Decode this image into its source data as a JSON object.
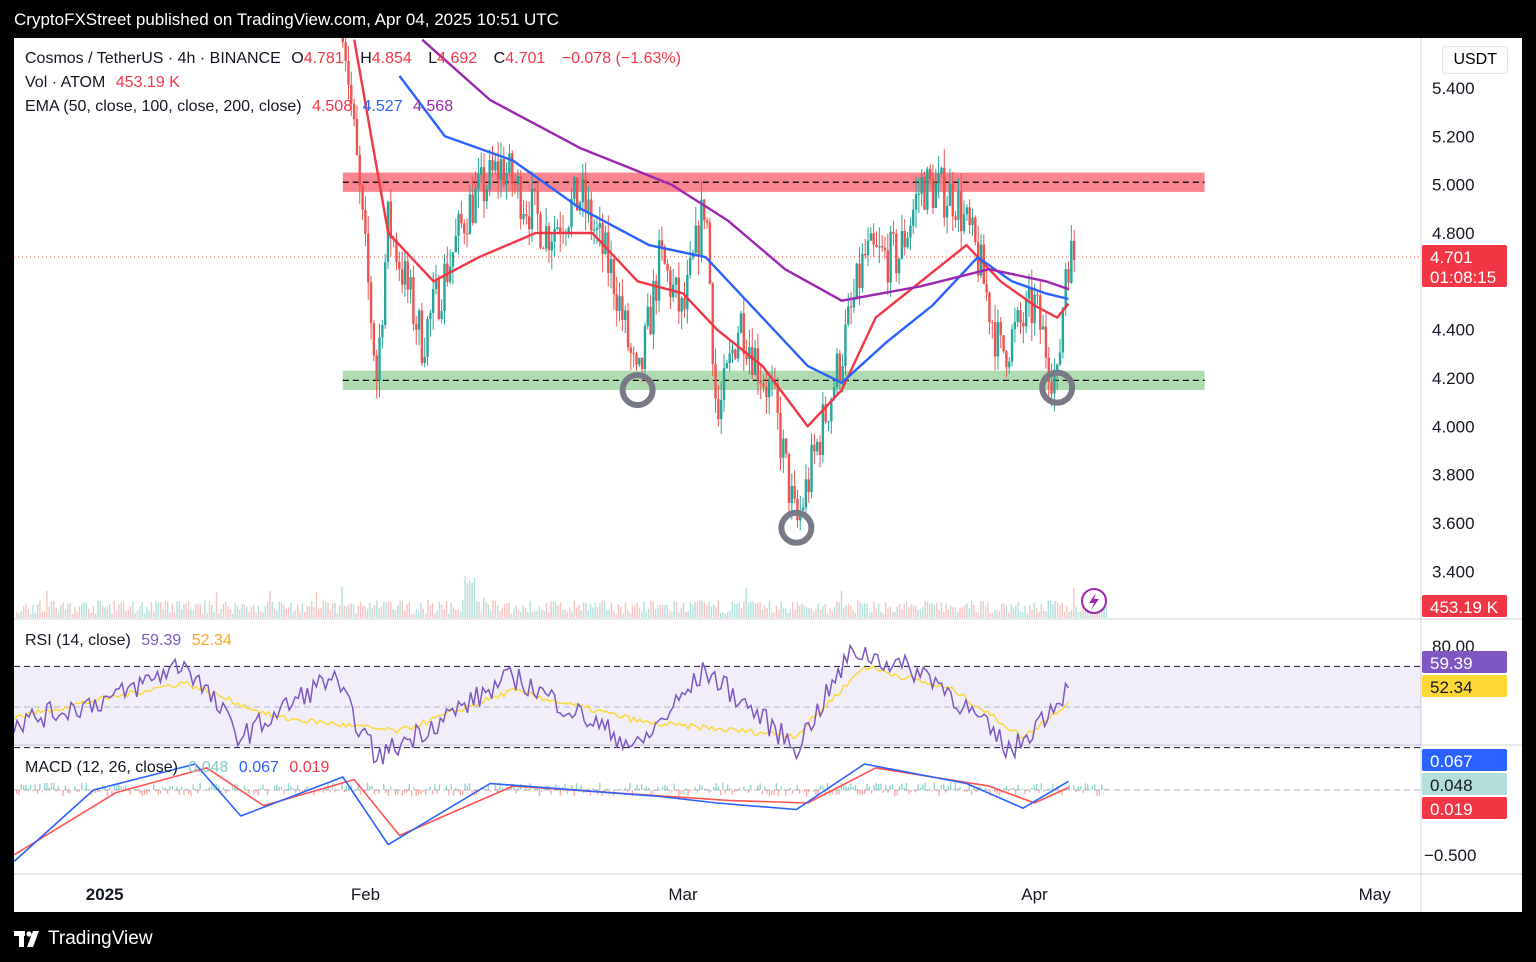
{
  "header": {
    "published": "CryptoFXStreet published on TradingView.com, Apr 04, 2025 10:51 UTC"
  },
  "legend": {
    "symbol": "Cosmos / TetherUS · 4h · BINANCE",
    "o_label": "O",
    "o_val": "4.781",
    "h_label": "H",
    "h_val": "4.854",
    "l_label": "L",
    "l_val": "4.692",
    "c_label": "C",
    "c_val": "4.701",
    "change": "−0.078 (−1.63%)",
    "vol_label": "Vol · ATOM",
    "vol_val": "453.19 K",
    "ema_label": "EMA (50, close, 100, close, 200, close)",
    "ema50": "4.508",
    "ema100": "4.527",
    "ema200": "4.568",
    "rsi_label": "RSI (14, close)",
    "rsi_val": "59.39",
    "rsi_ma": "52.34",
    "macd_label": "MACD (12, 26, close)",
    "macd_hist": "0.048",
    "macd_val": "0.067",
    "macd_signal": "0.019"
  },
  "currency": "USDT",
  "price_axis": [
    "5.400",
    "5.200",
    "5.000",
    "4.800",
    "4.400",
    "4.200",
    "4.000",
    "3.800",
    "3.600",
    "3.400"
  ],
  "price_tag": {
    "price": "4.701",
    "countdown": "01:08:15",
    "volume": "453.19 K"
  },
  "rsi_axis": [
    "80.00"
  ],
  "rsi_tags": [
    "59.39",
    "52.34"
  ],
  "macd_axis": [
    "−0.500"
  ],
  "macd_tags": [
    "0.067",
    "0.048",
    "0.019"
  ],
  "time_axis": [
    "2025",
    "Feb",
    "Mar",
    "Apr",
    "May"
  ],
  "footer": {
    "brand": "TradingView"
  },
  "colors": {
    "up": "#26a69a",
    "down": "#ef5350",
    "ema50": "#f23645",
    "ema100": "#2962ff",
    "ema200": "#9c27b0",
    "resistance": "#f7525f",
    "support": "#4caf50",
    "rsi": "#7e57c2",
    "rsi_ma": "#fdd835",
    "macd": "#2962ff",
    "signal": "#ff5252"
  },
  "chart_data": [
    {
      "type": "candlestick",
      "title": "Cosmos / TetherUS · 4h · BINANCE",
      "x_range": [
        "2025-01-01",
        "2025-05-05"
      ],
      "ylim": [
        3.3,
        5.5
      ],
      "resistance_zone": [
        4.97,
        5.05
      ],
      "resistance_line": 5.01,
      "support_zone": [
        4.15,
        4.23
      ],
      "support_line": 4.19,
      "last_price": 4.701,
      "marked_lows": [
        {
          "date": "2025-02-25",
          "price": 4.15
        },
        {
          "date": "2025-03-11",
          "price": 3.58
        },
        {
          "date": "2025-04-03",
          "price": 4.16
        }
      ],
      "price_path": [
        {
          "date": "2025-01-30",
          "price": 5.7
        },
        {
          "date": "2025-02-02",
          "price": 4.2
        },
        {
          "date": "2025-02-03",
          "price": 4.85
        },
        {
          "date": "2025-02-06",
          "price": 4.35
        },
        {
          "date": "2025-02-10",
          "price": 4.9
        },
        {
          "date": "2025-02-13",
          "price": 5.08
        },
        {
          "date": "2025-02-17",
          "price": 4.8
        },
        {
          "date": "2025-02-20",
          "price": 4.95
        },
        {
          "date": "2025-02-23",
          "price": 4.6
        },
        {
          "date": "2025-02-25",
          "price": 4.15
        },
        {
          "date": "2025-02-27",
          "price": 4.7
        },
        {
          "date": "2025-03-01",
          "price": 4.45
        },
        {
          "date": "2025-03-03",
          "price": 4.95
        },
        {
          "date": "2025-03-04",
          "price": 4.0
        },
        {
          "date": "2025-03-06",
          "price": 4.45
        },
        {
          "date": "2025-03-09",
          "price": 4.1
        },
        {
          "date": "2025-03-11",
          "price": 3.58
        },
        {
          "date": "2025-03-13",
          "price": 3.95
        },
        {
          "date": "2025-03-15",
          "price": 4.3
        },
        {
          "date": "2025-03-17",
          "price": 4.7
        },
        {
          "date": "2025-03-20",
          "price": 4.7
        },
        {
          "date": "2025-03-22",
          "price": 5.0
        },
        {
          "date": "2025-03-25",
          "price": 4.95
        },
        {
          "date": "2025-03-27",
          "price": 4.7
        },
        {
          "date": "2025-03-29",
          "price": 4.3
        },
        {
          "date": "2025-04-01",
          "price": 4.5
        },
        {
          "date": "2025-04-03",
          "price": 4.16
        },
        {
          "date": "2025-04-04",
          "price": 4.85
        },
        {
          "date": "2025-04-04",
          "price": 4.701
        }
      ],
      "series": [
        {
          "name": "EMA 50",
          "points": [
            {
              "date": "2025-01-31",
              "price": 5.6
            },
            {
              "date": "2025-02-03",
              "price": 4.8
            },
            {
              "date": "2025-02-07",
              "price": 4.6
            },
            {
              "date": "2025-02-11",
              "price": 4.7
            },
            {
              "date": "2025-02-16",
              "price": 4.8
            },
            {
              "date": "2025-02-21",
              "price": 4.8
            },
            {
              "date": "2025-02-25",
              "price": 4.6
            },
            {
              "date": "2025-03-01",
              "price": 4.55
            },
            {
              "date": "2025-03-04",
              "price": 4.4
            },
            {
              "date": "2025-03-08",
              "price": 4.25
            },
            {
              "date": "2025-03-12",
              "price": 4.0
            },
            {
              "date": "2025-03-15",
              "price": 4.15
            },
            {
              "date": "2025-03-18",
              "price": 4.45
            },
            {
              "date": "2025-03-22",
              "price": 4.6
            },
            {
              "date": "2025-03-26",
              "price": 4.75
            },
            {
              "date": "2025-03-29",
              "price": 4.6
            },
            {
              "date": "2025-04-01",
              "price": 4.5
            },
            {
              "date": "2025-04-03",
              "price": 4.45
            },
            {
              "date": "2025-04-04",
              "price": 4.508
            }
          ]
        },
        {
          "name": "EMA 100",
          "points": [
            {
              "date": "2025-02-04",
              "price": 5.45
            },
            {
              "date": "2025-02-08",
              "price": 5.2
            },
            {
              "date": "2025-02-14",
              "price": 5.1
            },
            {
              "date": "2025-02-20",
              "price": 4.9
            },
            {
              "date": "2025-02-26",
              "price": 4.75
            },
            {
              "date": "2025-03-03",
              "price": 4.7
            },
            {
              "date": "2025-03-08",
              "price": 4.45
            },
            {
              "date": "2025-03-12",
              "price": 4.25
            },
            {
              "date": "2025-03-15",
              "price": 4.18
            },
            {
              "date": "2025-03-19",
              "price": 4.35
            },
            {
              "date": "2025-03-23",
              "price": 4.5
            },
            {
              "date": "2025-03-27",
              "price": 4.7
            },
            {
              "date": "2025-03-30",
              "price": 4.6
            },
            {
              "date": "2025-04-02",
              "price": 4.55
            },
            {
              "date": "2025-04-04",
              "price": 4.527
            }
          ]
        },
        {
          "name": "EMA 200",
          "points": [
            {
              "date": "2025-02-06",
              "price": 5.6
            },
            {
              "date": "2025-02-12",
              "price": 5.35
            },
            {
              "date": "2025-02-20",
              "price": 5.15
            },
            {
              "date": "2025-02-28",
              "price": 5.0
            },
            {
              "date": "2025-03-05",
              "price": 4.85
            },
            {
              "date": "2025-03-10",
              "price": 4.65
            },
            {
              "date": "2025-03-15",
              "price": 4.52
            },
            {
              "date": "2025-03-22",
              "price": 4.58
            },
            {
              "date": "2025-03-28",
              "price": 4.65
            },
            {
              "date": "2025-04-02",
              "price": 4.6
            },
            {
              "date": "2025-04-04",
              "price": 4.568
            }
          ]
        }
      ]
    },
    {
      "type": "line",
      "title": "RSI (14, close)",
      "ylim": [
        20,
        85
      ],
      "levels": [
        70,
        50,
        30
      ],
      "series": [
        {
          "name": "RSI",
          "last": 59.39,
          "points": [
            {
              "date": "2025-01-01",
              "value": 42
            },
            {
              "date": "2025-01-10",
              "value": 55
            },
            {
              "date": "2025-01-16",
              "value": 72
            },
            {
              "date": "2025-01-21",
              "value": 35
            },
            {
              "date": "2025-01-29",
              "value": 65
            },
            {
              "date": "2025-02-02",
              "value": 25
            },
            {
              "date": "2025-02-14",
              "value": 65
            },
            {
              "date": "2025-02-25",
              "value": 30
            },
            {
              "date": "2025-03-03",
              "value": 68
            },
            {
              "date": "2025-03-11",
              "value": 30
            },
            {
              "date": "2025-03-16",
              "value": 78
            },
            {
              "date": "2025-03-23",
              "value": 65
            },
            {
              "date": "2025-03-30",
              "value": 28
            },
            {
              "date": "2025-04-04",
              "value": 59.39
            }
          ]
        },
        {
          "name": "RSI MA",
          "last": 52.34,
          "points": [
            {
              "date": "2025-01-01",
              "value": 45
            },
            {
              "date": "2025-01-16",
              "value": 62
            },
            {
              "date": "2025-01-24",
              "value": 45
            },
            {
              "date": "2025-02-04",
              "value": 38
            },
            {
              "date": "2025-02-14",
              "value": 58
            },
            {
              "date": "2025-02-26",
              "value": 42
            },
            {
              "date": "2025-03-11",
              "value": 36
            },
            {
              "date": "2025-03-17",
              "value": 70
            },
            {
              "date": "2025-03-25",
              "value": 58
            },
            {
              "date": "2025-03-31",
              "value": 35
            },
            {
              "date": "2025-04-04",
              "value": 52.34
            }
          ]
        }
      ]
    },
    {
      "type": "line",
      "title": "MACD (12, 26, close)",
      "ylim": [
        -0.65,
        0.35
      ],
      "levels": [
        0
      ],
      "series": [
        {
          "name": "MACD",
          "last": 0.067,
          "points": [
            {
              "date": "2025-01-01",
              "value": -0.55
            },
            {
              "date": "2025-01-08",
              "value": 0.0
            },
            {
              "date": "2025-01-17",
              "value": 0.2
            },
            {
              "date": "2025-01-21",
              "value": -0.2
            },
            {
              "date": "2025-01-30",
              "value": 0.1
            },
            {
              "date": "2025-02-03",
              "value": -0.42
            },
            {
              "date": "2025-02-12",
              "value": 0.05
            },
            {
              "date": "2025-02-27",
              "value": -0.05
            },
            {
              "date": "2025-03-04",
              "value": -0.1
            },
            {
              "date": "2025-03-11",
              "value": -0.15
            },
            {
              "date": "2025-03-17",
              "value": 0.2
            },
            {
              "date": "2025-03-26",
              "value": 0.05
            },
            {
              "date": "2025-03-31",
              "value": -0.14
            },
            {
              "date": "2025-04-04",
              "value": 0.067
            }
          ]
        },
        {
          "name": "Signal",
          "last": 0.019,
          "points": [
            {
              "date": "2025-01-01",
              "value": -0.5
            },
            {
              "date": "2025-01-10",
              "value": -0.02
            },
            {
              "date": "2025-01-18",
              "value": 0.17
            },
            {
              "date": "2025-01-23",
              "value": -0.12
            },
            {
              "date": "2025-01-31",
              "value": 0.08
            },
            {
              "date": "2025-02-04",
              "value": -0.35
            },
            {
              "date": "2025-02-14",
              "value": 0.03
            },
            {
              "date": "2025-03-05",
              "value": -0.08
            },
            {
              "date": "2025-03-12",
              "value": -0.1
            },
            {
              "date": "2025-03-18",
              "value": 0.17
            },
            {
              "date": "2025-03-28",
              "value": 0.03
            },
            {
              "date": "2025-04-01",
              "value": -0.1
            },
            {
              "date": "2025-04-04",
              "value": 0.019
            }
          ]
        }
      ]
    }
  ]
}
